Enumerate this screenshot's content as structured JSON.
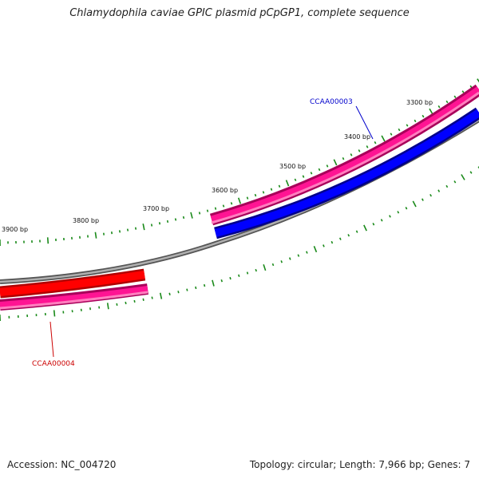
{
  "title": "Chlamydophila caviae GPIC plasmid pCpGP1, complete sequence",
  "footer": {
    "accession": "Accession: NC_004720",
    "summary": "Topology: circular; Length: 7,966 bp; Genes: 7"
  },
  "map": {
    "tick_labels": [
      {
        "text": "3300 bp",
        "bp": 3300
      },
      {
        "text": "3400 bp",
        "bp": 3400
      },
      {
        "text": "3500 bp",
        "bp": 3500
      },
      {
        "text": "3600 bp",
        "bp": 3600
      },
      {
        "text": "3700 bp",
        "bp": 3700
      },
      {
        "text": "3800 bp",
        "bp": 3800
      },
      {
        "text": "3900 bp",
        "bp": 3900
      }
    ],
    "gene_labels": [
      {
        "id": "gene-label-ccaa00003",
        "text": "CCAA00003",
        "color": "#0000cc"
      },
      {
        "id": "gene-label-ccaa00004",
        "text": "CCAA00004",
        "color": "#cc0000"
      }
    ],
    "colors": {
      "tick": "#1a8a1a",
      "backbone": "#808080",
      "forward_feature": "#ff1493",
      "cds_blue": "#0000ff",
      "cds_red": "#ff0000"
    }
  }
}
